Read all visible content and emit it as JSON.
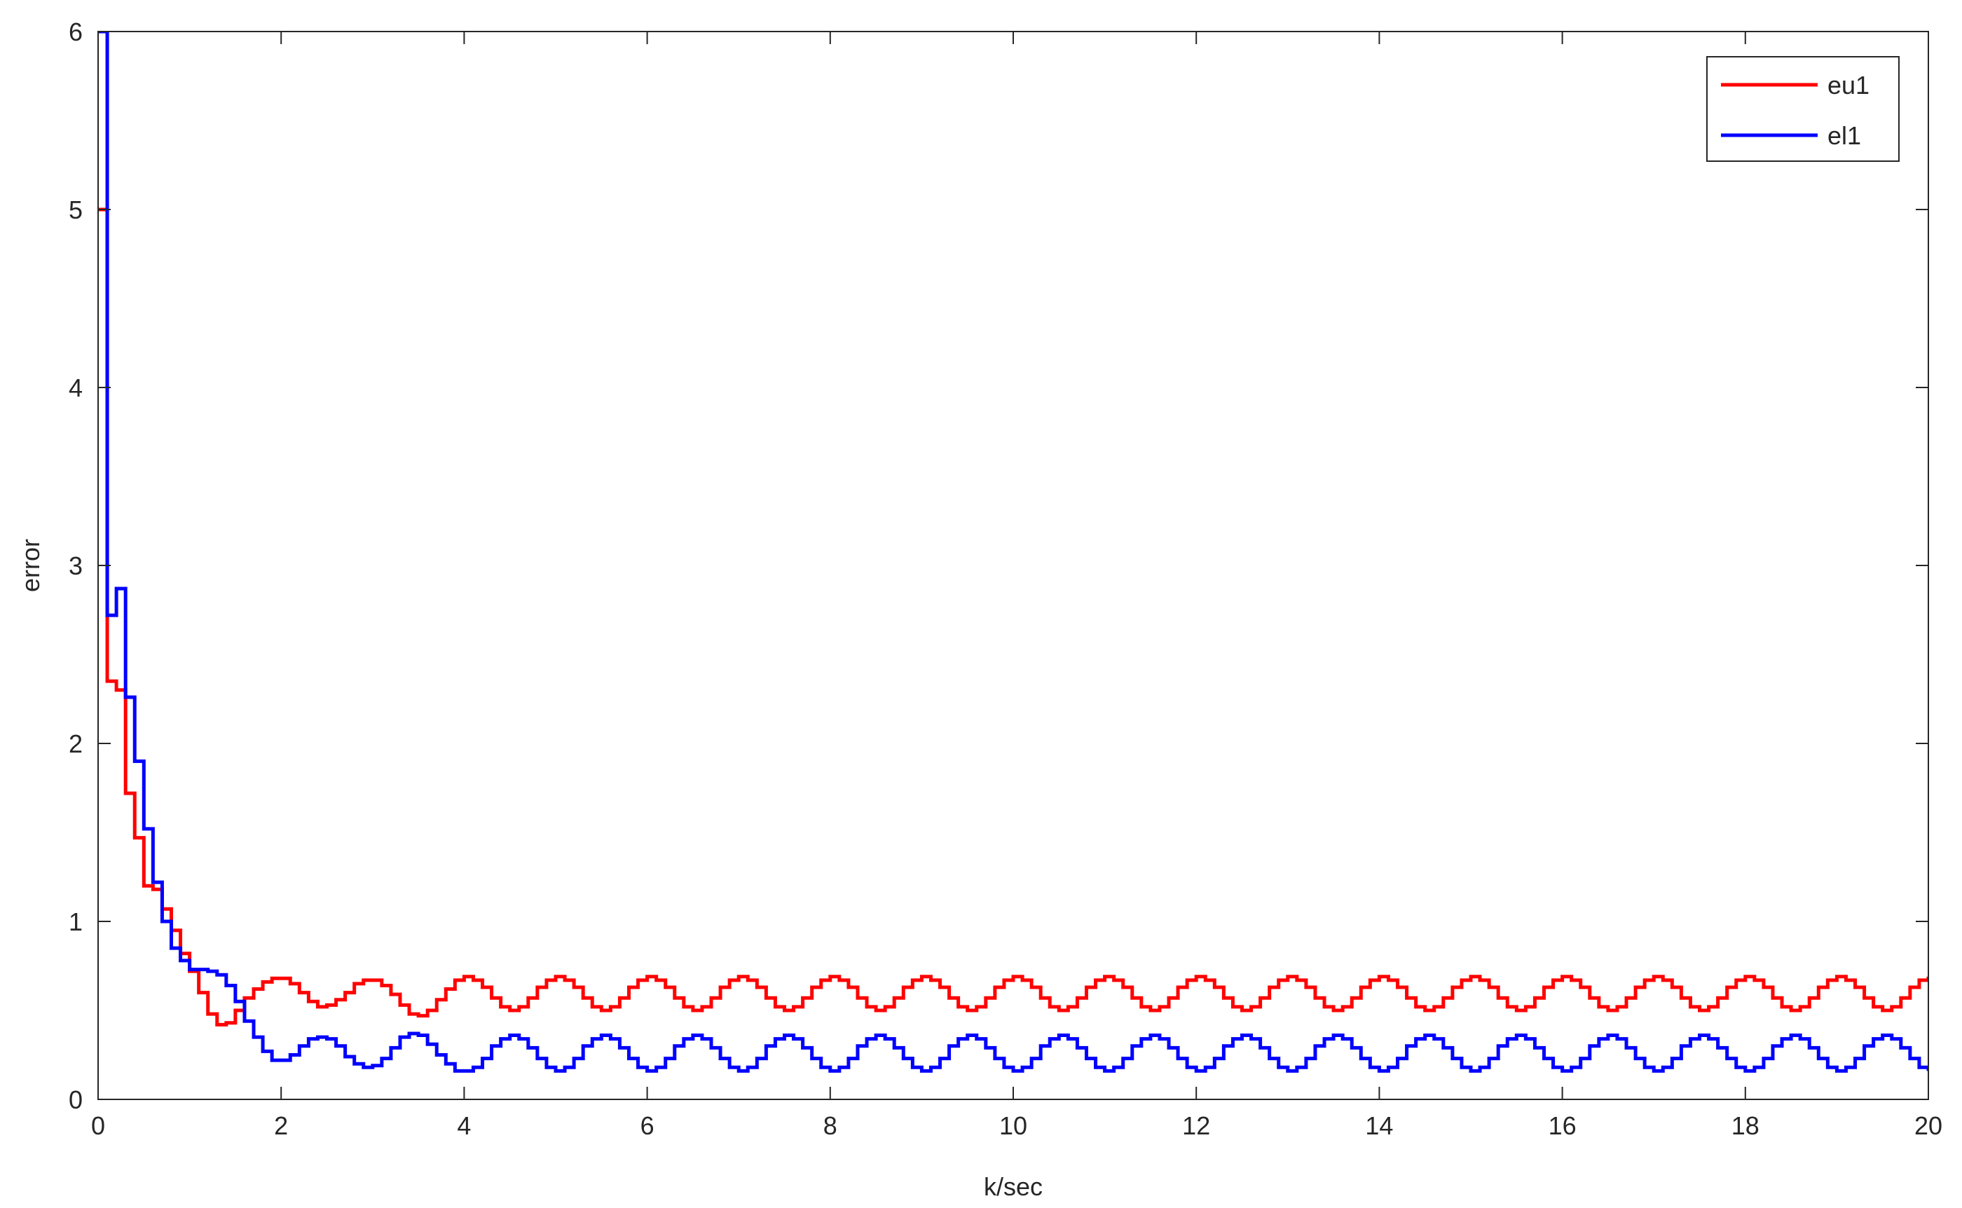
{
  "chart_data": {
    "type": "stairs",
    "xlabel": "k/sec",
    "ylabel": "error",
    "xlim": [
      0,
      20
    ],
    "ylim": [
      0,
      6
    ],
    "xticks": [
      0,
      2,
      4,
      6,
      8,
      10,
      12,
      14,
      16,
      18,
      20
    ],
    "yticks": [
      0,
      1,
      2,
      3,
      4,
      5,
      6
    ],
    "legend_position": "upper right",
    "x": [
      0,
      0.1,
      0.2,
      0.3,
      0.4,
      0.5,
      0.6,
      0.7,
      0.8,
      0.9,
      1,
      1.1,
      1.2,
      1.3,
      1.4,
      1.5,
      1.6,
      1.7,
      1.8,
      1.9,
      2,
      2.1,
      2.2,
      2.3,
      2.4,
      2.5,
      2.6,
      2.7,
      2.8,
      2.9,
      3,
      3.1,
      3.2,
      3.3,
      3.4,
      3.5,
      3.6,
      3.7,
      3.8,
      3.9,
      4,
      4.1,
      4.2,
      4.3,
      4.4,
      4.5,
      4.6,
      4.7,
      4.8,
      4.9,
      5,
      5.1,
      5.2,
      5.3,
      5.4,
      5.5,
      5.6,
      5.7,
      5.8,
      5.9,
      6,
      6.1,
      6.2,
      6.3,
      6.4,
      6.5,
      6.6,
      6.7,
      6.8,
      6.9,
      7,
      7.1,
      7.2,
      7.3,
      7.4,
      7.5,
      7.6,
      7.7,
      7.8,
      7.9,
      8,
      8.1,
      8.2,
      8.3,
      8.4,
      8.5,
      8.6,
      8.7,
      8.8,
      8.9,
      9,
      9.1,
      9.2,
      9.3,
      9.4,
      9.5,
      9.6,
      9.7,
      9.8,
      9.9,
      10,
      10.1,
      10.2,
      10.3,
      10.4,
      10.5,
      10.6,
      10.7,
      10.8,
      10.9,
      11,
      11.1,
      11.2,
      11.3,
      11.4,
      11.5,
      11.6,
      11.7,
      11.8,
      11.9,
      12,
      12.1,
      12.2,
      12.3,
      12.4,
      12.5,
      12.6,
      12.7,
      12.8,
      12.9,
      13,
      13.1,
      13.2,
      13.3,
      13.4,
      13.5,
      13.6,
      13.7,
      13.8,
      13.9,
      14,
      14.1,
      14.2,
      14.3,
      14.4,
      14.5,
      14.6,
      14.7,
      14.8,
      14.9,
      15,
      15.1,
      15.2,
      15.3,
      15.4,
      15.5,
      15.6,
      15.7,
      15.8,
      15.9,
      16,
      16.1,
      16.2,
      16.3,
      16.4,
      16.5,
      16.6,
      16.7,
      16.8,
      16.9,
      17,
      17.1,
      17.2,
      17.3,
      17.4,
      17.5,
      17.6,
      17.7,
      17.8,
      17.9,
      18,
      18.1,
      18.2,
      18.3,
      18.4,
      18.5,
      18.6,
      18.7,
      18.8,
      18.9,
      19,
      19.1,
      19.2,
      19.3,
      19.4,
      19.5,
      19.6,
      19.7,
      19.8,
      19.9,
      20
    ],
    "series": [
      {
        "name": "eu1",
        "color": "#ff0000",
        "values": [
          5,
          2.35,
          2.3,
          1.72,
          1.47,
          1.2,
          1.18,
          1.07,
          0.95,
          0.82,
          0.72,
          0.6,
          0.48,
          0.42,
          0.43,
          0.5,
          0.57,
          0.62,
          0.66,
          0.68,
          0.68,
          0.65,
          0.6,
          0.55,
          0.52,
          0.53,
          0.56,
          0.6,
          0.65,
          0.67,
          0.67,
          0.64,
          0.59,
          0.53,
          0.48,
          0.47,
          0.5,
          0.56,
          0.62,
          0.67,
          0.69,
          0.67,
          0.63,
          0.57,
          0.52,
          0.5,
          0.52,
          0.57,
          0.63,
          0.67,
          0.69,
          0.67,
          0.63,
          0.57,
          0.52,
          0.5,
          0.52,
          0.57,
          0.63,
          0.67,
          0.69,
          0.67,
          0.63,
          0.57,
          0.52,
          0.5,
          0.52,
          0.57,
          0.63,
          0.67,
          0.69,
          0.67,
          0.63,
          0.57,
          0.52,
          0.5,
          0.52,
          0.57,
          0.63,
          0.67,
          0.69,
          0.67,
          0.63,
          0.57,
          0.52,
          0.5,
          0.52,
          0.57,
          0.63,
          0.67,
          0.69,
          0.67,
          0.63,
          0.57,
          0.52,
          0.5,
          0.52,
          0.57,
          0.63,
          0.67,
          0.69,
          0.67,
          0.63,
          0.57,
          0.52,
          0.5,
          0.52,
          0.57,
          0.63,
          0.67,
          0.69,
          0.67,
          0.63,
          0.57,
          0.52,
          0.5,
          0.52,
          0.57,
          0.63,
          0.67,
          0.69,
          0.67,
          0.63,
          0.57,
          0.52,
          0.5,
          0.52,
          0.57,
          0.63,
          0.67,
          0.69,
          0.67,
          0.63,
          0.57,
          0.52,
          0.5,
          0.52,
          0.57,
          0.63,
          0.67,
          0.69,
          0.67,
          0.63,
          0.57,
          0.52,
          0.5,
          0.52,
          0.57,
          0.63,
          0.67,
          0.69,
          0.67,
          0.63,
          0.57,
          0.52,
          0.5,
          0.52,
          0.57,
          0.63,
          0.67,
          0.69,
          0.67,
          0.63,
          0.57,
          0.52,
          0.5,
          0.52,
          0.57,
          0.63,
          0.67,
          0.69,
          0.67,
          0.63,
          0.57,
          0.52,
          0.5,
          0.52,
          0.57,
          0.63,
          0.67,
          0.69,
          0.67,
          0.63,
          0.57,
          0.52,
          0.5,
          0.52,
          0.57,
          0.63,
          0.67,
          0.69,
          0.67,
          0.63,
          0.57,
          0.52,
          0.5,
          0.52,
          0.57,
          0.63,
          0.67,
          0.69
        ]
      },
      {
        "name": "el1",
        "color": "#0000ff",
        "values": [
          6,
          2.72,
          2.87,
          2.26,
          1.9,
          1.52,
          1.22,
          1,
          0.85,
          0.78,
          0.73,
          0.73,
          0.72,
          0.7,
          0.64,
          0.55,
          0.44,
          0.35,
          0.27,
          0.22,
          0.22,
          0.25,
          0.3,
          0.34,
          0.35,
          0.34,
          0.3,
          0.24,
          0.2,
          0.18,
          0.19,
          0.23,
          0.29,
          0.35,
          0.37,
          0.36,
          0.31,
          0.25,
          0.2,
          0.16,
          0.16,
          0.18,
          0.23,
          0.3,
          0.34,
          0.36,
          0.34,
          0.29,
          0.23,
          0.18,
          0.16,
          0.18,
          0.23,
          0.3,
          0.34,
          0.36,
          0.34,
          0.29,
          0.23,
          0.18,
          0.16,
          0.18,
          0.23,
          0.3,
          0.34,
          0.36,
          0.34,
          0.29,
          0.23,
          0.18,
          0.16,
          0.18,
          0.23,
          0.3,
          0.34,
          0.36,
          0.34,
          0.29,
          0.23,
          0.18,
          0.16,
          0.18,
          0.23,
          0.3,
          0.34,
          0.36,
          0.34,
          0.29,
          0.23,
          0.18,
          0.16,
          0.18,
          0.23,
          0.3,
          0.34,
          0.36,
          0.34,
          0.29,
          0.23,
          0.18,
          0.16,
          0.18,
          0.23,
          0.3,
          0.34,
          0.36,
          0.34,
          0.29,
          0.23,
          0.18,
          0.16,
          0.18,
          0.23,
          0.3,
          0.34,
          0.36,
          0.34,
          0.29,
          0.23,
          0.18,
          0.16,
          0.18,
          0.23,
          0.3,
          0.34,
          0.36,
          0.34,
          0.29,
          0.23,
          0.18,
          0.16,
          0.18,
          0.23,
          0.3,
          0.34,
          0.36,
          0.34,
          0.29,
          0.23,
          0.18,
          0.16,
          0.18,
          0.23,
          0.3,
          0.34,
          0.36,
          0.34,
          0.29,
          0.23,
          0.18,
          0.16,
          0.18,
          0.23,
          0.3,
          0.34,
          0.36,
          0.34,
          0.29,
          0.23,
          0.18,
          0.16,
          0.18,
          0.23,
          0.3,
          0.34,
          0.36,
          0.34,
          0.29,
          0.23,
          0.18,
          0.16,
          0.18,
          0.23,
          0.3,
          0.34,
          0.36,
          0.34,
          0.29,
          0.23,
          0.18,
          0.16,
          0.18,
          0.23,
          0.3,
          0.34,
          0.36,
          0.34,
          0.29,
          0.23,
          0.18,
          0.16,
          0.18,
          0.23,
          0.3,
          0.34,
          0.36,
          0.34,
          0.29,
          0.23,
          0.18,
          0.16
        ]
      }
    ]
  }
}
